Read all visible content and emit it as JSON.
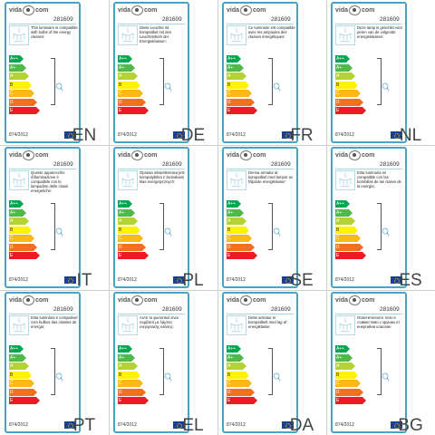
{
  "brand": "vida",
  "brand_suffix": "com",
  "product_code": "281609",
  "regulation": "874/2012",
  "rating_classes": [
    "A++",
    "A+",
    "A",
    "B",
    "C",
    "D",
    "E"
  ],
  "rating_colors": [
    "#00a650",
    "#50b848",
    "#b5d334",
    "#fff200",
    "#fdb813",
    "#f37021",
    "#ed1c24"
  ],
  "cells": [
    {
      "lang": "EN",
      "text": "This luminaire is compatible with bulbs of the energy classes:"
    },
    {
      "lang": "DE",
      "text": "Diese Leuchte ist kompatibel mit den Leuchtmitteln der Energieklassen:"
    },
    {
      "lang": "FR",
      "text": "Ce luminaire est compatible avec les ampoules des classes énergétiques:"
    },
    {
      "lang": "NL",
      "text": "Deze lamp is geschikt voor peren van de volgende energieklassen:"
    },
    {
      "lang": "IT",
      "text": "Questo apparecchio d'illuminazione è compatibile con le lampadine delle classi energetiche:"
    },
    {
      "lang": "PL",
      "text": "Oprawa oświetleniowa jest kompatybilna z żarówkami klas energetycznych:"
    },
    {
      "lang": "SE",
      "text": "Denna armatur är kompatibel med lampor av följande energiklasser:"
    },
    {
      "lang": "ES",
      "text": "Esta luminaria es compatible con las bombillas de las clases de la energía:"
    },
    {
      "lang": "PT",
      "text": "Esta luminária é compatível com bulbos das classes de energia:"
    },
    {
      "lang": "EL",
      "text": "Αυτό το φωτιστικό είναι συμβατό με λάμπες ενεργειακής κλάσης:"
    },
    {
      "lang": "DA",
      "text": "Dette armatur er kompatibelt med lag af energiklasse:"
    },
    {
      "lang": "BG",
      "text": "Осветителното тяло е съвместимо с крушки от енергийни класове:"
    }
  ]
}
